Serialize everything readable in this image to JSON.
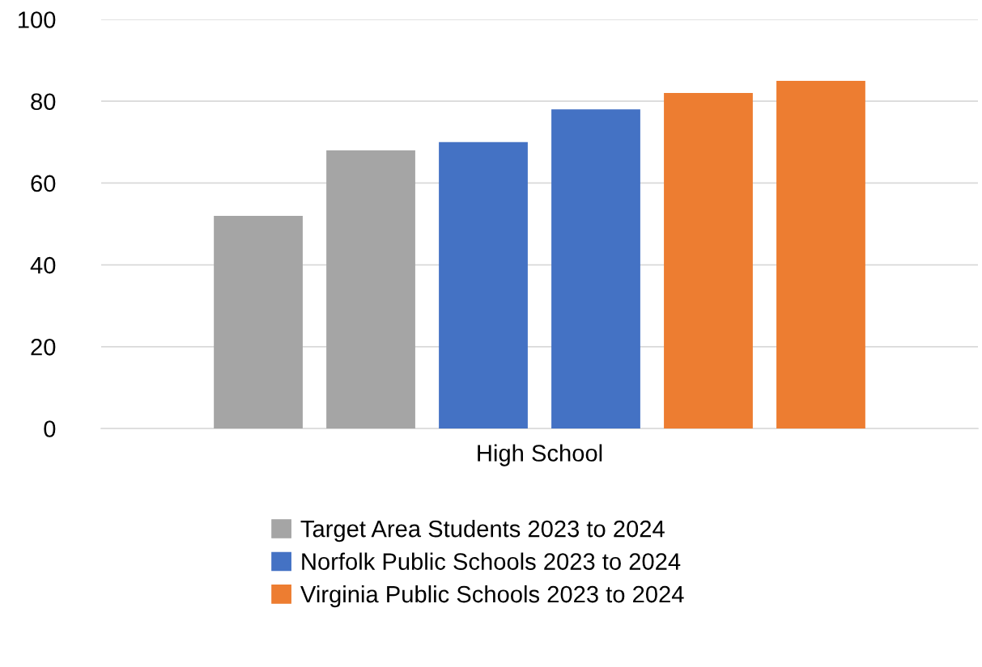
{
  "chart_data": {
    "type": "bar",
    "categories": [
      "High School"
    ],
    "series": [
      {
        "name": "Target Area Students 2023 to 2024",
        "color": "#a5a5a5",
        "values": [
          52
        ]
      },
      {
        "color": "#a5a5a5",
        "values": [
          68
        ]
      },
      {
        "name": "Norfolk Public Schools 2023 to 2024",
        "color": "#4472c4",
        "values": [
          70
        ]
      },
      {
        "color": "#4472c4",
        "values": [
          78
        ]
      },
      {
        "name": "Virginia Public Schools 2023 to 2024",
        "color": "#ed7d31",
        "values": [
          82
        ]
      },
      {
        "color": "#ed7d31",
        "values": [
          85
        ]
      }
    ],
    "ylim": [
      0,
      100
    ],
    "yticks": [
      0,
      20,
      40,
      60,
      80,
      100
    ],
    "grid": "y",
    "legend": "bottom"
  }
}
